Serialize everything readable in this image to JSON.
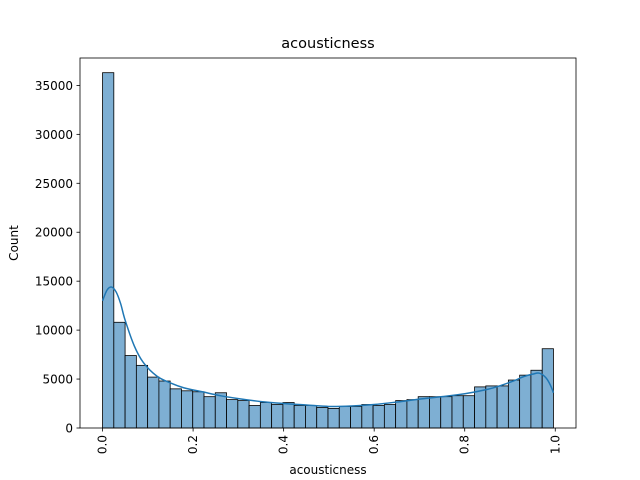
{
  "chart_data": {
    "type": "bar",
    "subtype": "histogram-with-kde",
    "title": "acousticness",
    "xlabel": "acousticness",
    "ylabel": "Count",
    "xlim": [
      -0.0498,
      1.0458
    ],
    "ylim": [
      0,
      37800
    ],
    "x_ticks": [
      0.0,
      0.2,
      0.4,
      0.6,
      0.8,
      1.0
    ],
    "x_tick_labels": [
      "0.0",
      "0.2",
      "0.4",
      "0.6",
      "0.8",
      "1.0"
    ],
    "x_tick_rotation": 90,
    "y_ticks": [
      0,
      5000,
      10000,
      15000,
      20000,
      25000,
      30000,
      35000
    ],
    "y_tick_labels": [
      "0",
      "5000",
      "10000",
      "15000",
      "20000",
      "25000",
      "30000",
      "35000"
    ],
    "grid": false,
    "legend": false,
    "bin_start": 0.0,
    "bin_width": 0.0249,
    "counts": [
      36300,
      10800,
      7400,
      6400,
      5200,
      4800,
      4000,
      3800,
      3700,
      3200,
      3600,
      2900,
      2800,
      2300,
      2600,
      2400,
      2600,
      2300,
      2300,
      2100,
      2000,
      2200,
      2200,
      2400,
      2300,
      2400,
      2800,
      2900,
      3200,
      3200,
      3200,
      3300,
      3300,
      4200,
      4300,
      4300,
      4900,
      5400,
      5900,
      8100
    ],
    "kde": {
      "x": [
        0.0,
        0.01,
        0.02,
        0.03,
        0.04,
        0.05,
        0.07,
        0.09,
        0.12,
        0.15,
        0.18,
        0.22,
        0.26,
        0.3,
        0.35,
        0.4,
        0.45,
        0.5,
        0.55,
        0.6,
        0.65,
        0.7,
        0.75,
        0.8,
        0.85,
        0.88,
        0.91,
        0.93,
        0.95,
        0.965,
        0.98,
        0.99,
        0.996
      ],
      "y": [
        13000,
        14100,
        14400,
        13900,
        12700,
        11000,
        8400,
        6700,
        5300,
        4600,
        4100,
        3700,
        3300,
        3000,
        2700,
        2500,
        2350,
        2200,
        2250,
        2400,
        2650,
        2950,
        3200,
        3500,
        3950,
        4350,
        4850,
        5250,
        5500,
        5600,
        5100,
        4300,
        3600
      ]
    },
    "colors": {
      "bar_fill": "#7eafd3",
      "bar_edge": "#000000",
      "kde_line": "#1f77b4"
    }
  }
}
